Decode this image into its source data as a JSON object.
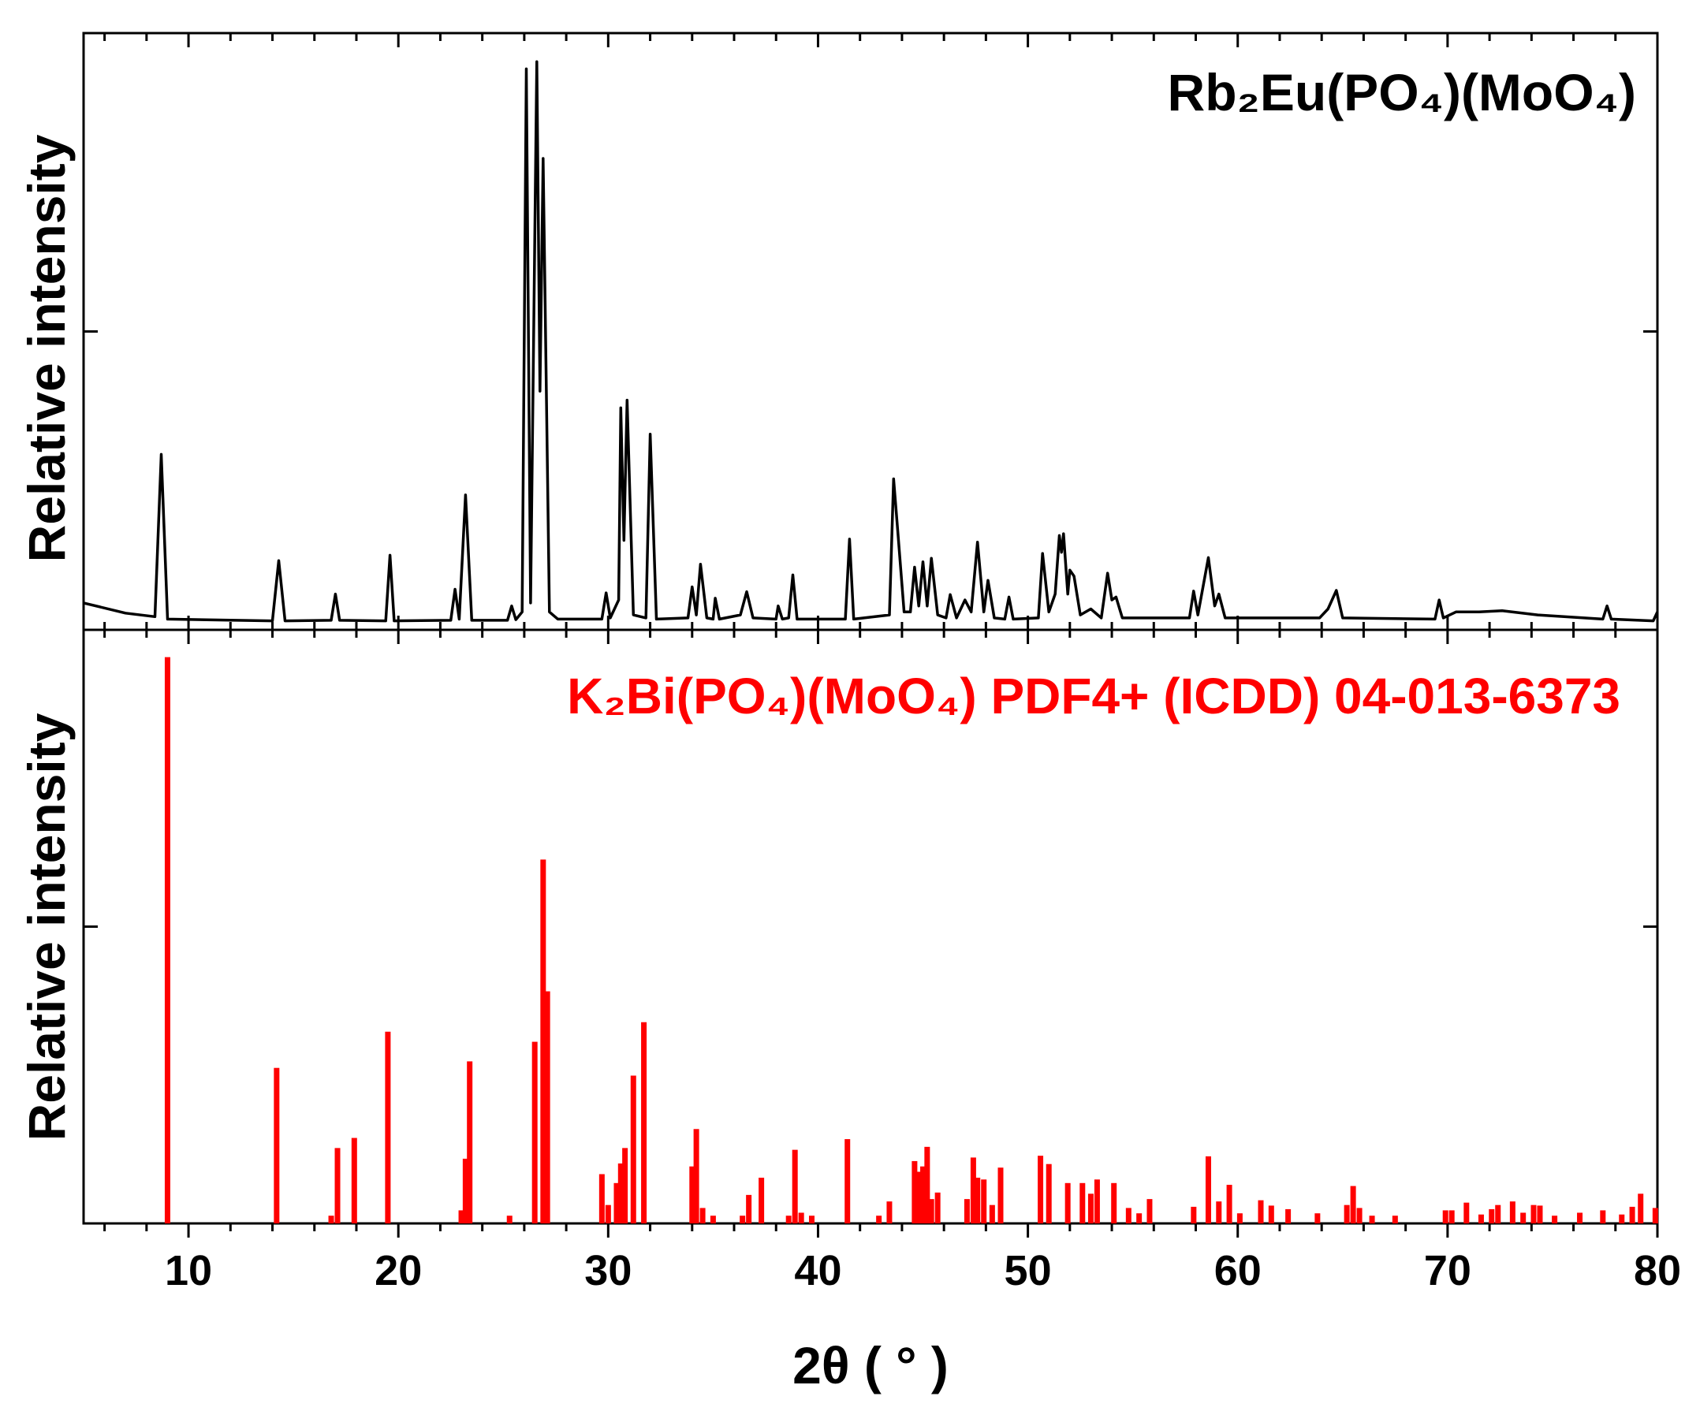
{
  "chart_data": [
    {
      "type": "line",
      "ylabel": "Relative intensity",
      "xlim": [
        5,
        80
      ],
      "ylim": [
        0,
        100
      ],
      "yticks": [
        50
      ],
      "xticks": [
        10,
        20,
        30,
        40,
        50,
        60,
        70,
        80
      ],
      "xminorticks": [
        6,
        8,
        12,
        14,
        16,
        18,
        22,
        24,
        26,
        28,
        32,
        34,
        36,
        38,
        42,
        44,
        46,
        48,
        52,
        54,
        56,
        58,
        62,
        64,
        66,
        68,
        72,
        74,
        76,
        78
      ],
      "x": [
        5,
        7,
        8.4,
        8.7,
        9.0,
        14.0,
        14.3,
        14.6,
        16.8,
        17.0,
        17.2,
        19.4,
        19.6,
        19.8,
        22.5,
        22.7,
        22.9,
        23.2,
        23.5,
        25.2,
        25.4,
        25.6,
        25.9,
        26.1,
        26.3,
        26.6,
        26.75,
        26.9,
        27.2,
        27.6,
        29.7,
        29.9,
        30.1,
        30.5,
        30.6,
        30.75,
        30.9,
        31.2,
        31.8,
        32.0,
        32.3,
        33.8,
        34.0,
        34.2,
        34.4,
        34.7,
        35.0,
        35.1,
        35.3,
        36.3,
        36.6,
        36.9,
        38.0,
        38.1,
        38.3,
        38.6,
        38.8,
        39.0,
        41.3,
        41.5,
        41.7,
        43.4,
        43.6,
        43.8,
        44.1,
        44.4,
        44.6,
        44.8,
        45.0,
        45.2,
        45.4,
        45.7,
        46.1,
        46.3,
        46.6,
        47.0,
        47.3,
        47.6,
        47.9,
        48.1,
        48.4,
        48.9,
        49.1,
        49.3,
        50.5,
        50.7,
        51.0,
        51.3,
        51.5,
        51.6,
        51.7,
        51.9,
        52.0,
        52.2,
        52.5,
        53.0,
        53.5,
        53.8,
        54.0,
        54.2,
        54.5,
        57.7,
        57.9,
        58.1,
        58.6,
        58.9,
        59.1,
        59.4,
        63.9,
        64.3,
        64.7,
        65.0,
        69.4,
        69.6,
        69.8,
        70.4,
        71.5,
        72.6,
        74.3,
        77.4,
        77.6,
        77.8,
        79.8,
        80
      ],
      "series": [
        {
          "name": "Rb₂Eu(PO₄)(MoO₄)",
          "color": "#000000",
          "values": [
            4.5,
            2.8,
            2.2,
            29.4,
            1.8,
            1.5,
            11.6,
            1.5,
            1.6,
            6,
            1.6,
            1.5,
            12.5,
            1.5,
            1.6,
            6.8,
            1.8,
            22.6,
            1.6,
            1.6,
            4,
            1.7,
            3,
            94,
            4.5,
            95.2,
            40,
            79,
            3,
            1.8,
            1.8,
            6.2,
            2,
            5,
            37.2,
            15,
            38.5,
            2.5,
            2,
            32.8,
            1.8,
            2,
            7.2,
            2.5,
            11,
            2,
            1.8,
            5.3,
            1.8,
            2.5,
            6.4,
            2,
            1.8,
            4,
            1.8,
            2,
            9.2,
            1.8,
            1.8,
            15.2,
            1.8,
            2.5,
            25.3,
            16.5,
            3,
            3,
            10.5,
            4,
            11.4,
            4,
            12,
            2.5,
            2,
            5.9,
            2,
            5,
            3,
            14.7,
            3,
            8.3,
            2,
            1.8,
            5.5,
            1.8,
            2,
            12.8,
            3,
            6,
            15.8,
            13,
            16.1,
            6,
            10,
            9,
            2.5,
            3.5,
            2,
            9.5,
            5,
            5.5,
            2,
            2,
            6.5,
            2.5,
            12.1,
            4,
            6,
            2,
            2,
            3.5,
            6.6,
            2,
            1.8,
            5,
            2,
            3,
            3,
            3.2,
            2.5,
            1.8,
            4,
            1.8,
            1.5,
            3
          ]
        }
      ]
    },
    {
      "type": "bar",
      "ylabel": "Relative intensity",
      "xlabel": "2θ ( ° )",
      "xlim": [
        5,
        80
      ],
      "ylim": [
        0,
        100
      ],
      "yticks": [
        50
      ],
      "xticks": [
        10,
        20,
        30,
        40,
        50,
        60,
        70,
        80
      ],
      "xminorticks": [
        6,
        8,
        12,
        14,
        16,
        18,
        22,
        24,
        26,
        28,
        32,
        34,
        36,
        38,
        42,
        44,
        46,
        48,
        52,
        54,
        56,
        58,
        62,
        64,
        66,
        68,
        72,
        74,
        76,
        78
      ],
      "name": "K₂Bi(PO₄)(MoO₄) PDF4+ (ICDD) 04-013-6373",
      "color": "#ff0000",
      "x": [
        9.0,
        14.2,
        16.8,
        17.1,
        17.9,
        19.5,
        23.0,
        23.2,
        23.4,
        25.3,
        26.5,
        26.9,
        27.1,
        29.7,
        30.0,
        30.4,
        30.6,
        30.8,
        31.2,
        31.7,
        34.0,
        34.2,
        34.5,
        35.0,
        36.4,
        36.7,
        37.3,
        38.6,
        38.9,
        39.2,
        39.7,
        41.4,
        42.9,
        43.4,
        44.6,
        44.8,
        45.0,
        45.2,
        45.4,
        45.7,
        47.1,
        47.4,
        47.6,
        47.9,
        48.3,
        48.7,
        50.6,
        51.0,
        51.9,
        52.6,
        53.0,
        53.3,
        54.1,
        54.8,
        55.3,
        55.8,
        57.9,
        58.6,
        59.1,
        59.6,
        60.1,
        61.1,
        61.6,
        62.4,
        63.8,
        65.2,
        65.5,
        65.8,
        66.4,
        67.5,
        69.9,
        70.2,
        70.9,
        71.6,
        72.1,
        72.4,
        73.1,
        73.6,
        74.1,
        74.4,
        75.1,
        76.3,
        77.4,
        78.3,
        78.8,
        79.2,
        79.9
      ],
      "values": [
        95.4,
        26.2,
        1.3,
        12.7,
        14.4,
        32.3,
        2.2,
        10.9,
        27.3,
        1.3,
        30.6,
        61.3,
        39.1,
        8.3,
        3.1,
        6.8,
        10.1,
        12.7,
        24.9,
        33.9,
        9.6,
        15.9,
        2.6,
        1.3,
        1.3,
        4.8,
        7.7,
        1.3,
        12.4,
        1.8,
        1.3,
        14.2,
        1.3,
        3.7,
        10.5,
        8.7,
        9.6,
        12.9,
        4.1,
        5.2,
        4.1,
        11.1,
        7.7,
        7.4,
        3.1,
        9.4,
        11.4,
        10,
        6.8,
        6.8,
        5,
        7.4,
        6.8,
        2.6,
        1.7,
        4.1,
        2.8,
        11.3,
        3.7,
        6.5,
        1.7,
        3.9,
        3,
        2.4,
        1.7,
        3.1,
        6.3,
        2.6,
        1.3,
        1.3,
        2.2,
        2.2,
        3.5,
        1.5,
        2.4,
        3.1,
        3.7,
        1.8,
        3.1,
        3,
        1.3,
        1.8,
        2.2,
        1.5,
        2.8,
        5,
        2.6
      ]
    }
  ]
}
